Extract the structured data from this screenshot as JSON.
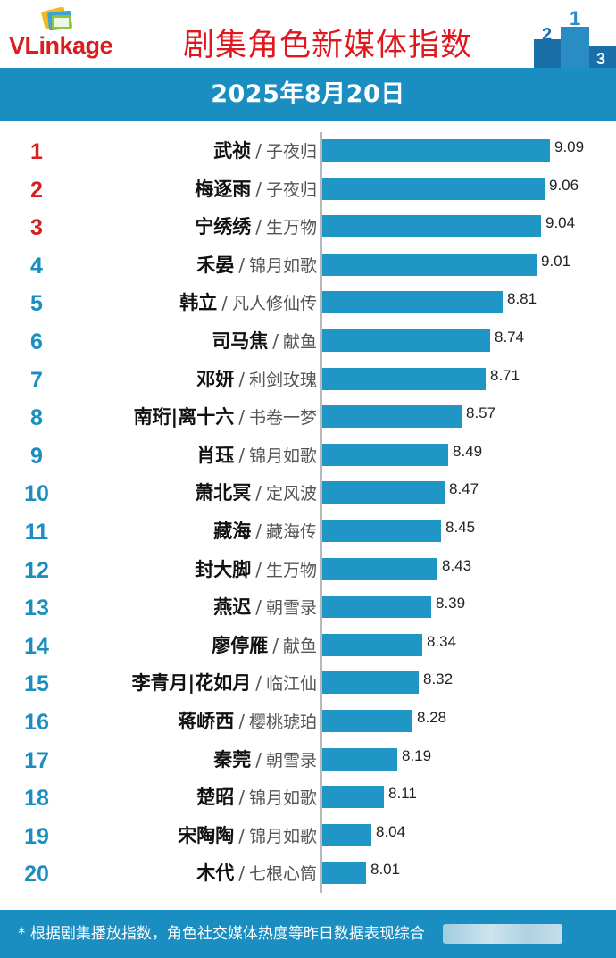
{
  "header": {
    "logo_text": "VLinkage",
    "title": "剧集角色新媒体指数"
  },
  "date": "2025年8月20日",
  "colors": {
    "brand_blue": "#1a8ec0",
    "bar": "#1f96c6",
    "rank_top3": "#d81e1e",
    "rank_other": "#1a8ec0",
    "title_red": "#e0171c"
  },
  "chart_data": {
    "type": "bar",
    "orientation": "horizontal",
    "title": "剧集角色新媒体指数",
    "subtitle": "2025年8月20日",
    "xlabel": "",
    "ylabel": "",
    "grid": false,
    "legend": "none",
    "xlim": [
      7.75,
      9.25
    ],
    "rows": [
      {
        "rank": "1",
        "character": "武祯",
        "show": "子夜归",
        "value": 9.09
      },
      {
        "rank": "2",
        "character": "梅逐雨",
        "show": "子夜归",
        "value": 9.06
      },
      {
        "rank": "3",
        "character": "宁绣绣",
        "show": "生万物",
        "value": 9.04
      },
      {
        "rank": "4",
        "character": "禾晏",
        "show": "锦月如歌",
        "value": 9.01
      },
      {
        "rank": "5",
        "character": "韩立",
        "show": "凡人修仙传",
        "value": 8.81
      },
      {
        "rank": "6",
        "character": "司马焦",
        "show": "献鱼",
        "value": 8.74
      },
      {
        "rank": "7",
        "character": "邓妍",
        "show": "利剑玫瑰",
        "value": 8.71
      },
      {
        "rank": "8",
        "character": "南珩|离十六",
        "show": "书卷一梦",
        "value": 8.57
      },
      {
        "rank": "9",
        "character": "肖珏",
        "show": "锦月如歌",
        "value": 8.49
      },
      {
        "rank": "10",
        "character": "萧北冥",
        "show": "定风波",
        "value": 8.47
      },
      {
        "rank": "11",
        "character": "藏海",
        "show": "藏海传",
        "value": 8.45
      },
      {
        "rank": "12",
        "character": "封大脚",
        "show": "生万物",
        "value": 8.43
      },
      {
        "rank": "13",
        "character": "燕迟",
        "show": "朝雪录",
        "value": 8.39
      },
      {
        "rank": "14",
        "character": "廖停雁",
        "show": "献鱼",
        "value": 8.34
      },
      {
        "rank": "15",
        "character": "李青月|花如月",
        "show": "临江仙",
        "value": 8.32
      },
      {
        "rank": "16",
        "character": "蒋峤西",
        "show": "樱桃琥珀",
        "value": 8.28
      },
      {
        "rank": "17",
        "character": "秦莞",
        "show": "朝雪录",
        "value": 8.19
      },
      {
        "rank": "18",
        "character": "楚昭",
        "show": "锦月如歌",
        "value": 8.11
      },
      {
        "rank": "19",
        "character": "宋陶陶",
        "show": "锦月如歌",
        "value": 8.04
      },
      {
        "rank": "20",
        "character": "木代",
        "show": "七根心筒",
        "value": 8.01
      }
    ]
  },
  "footer": {
    "note": "* 根据剧集播放指数，角色社交媒体热度等昨日数据表现综合"
  }
}
